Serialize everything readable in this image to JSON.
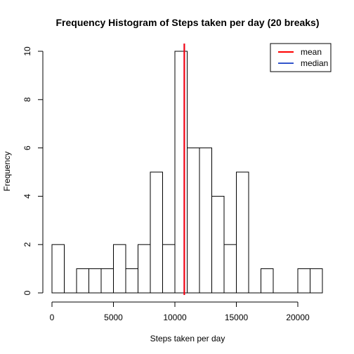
{
  "chart_data": {
    "type": "bar",
    "title": "Frequency Histogram of Steps taken per day (20 breaks)",
    "xlabel": "Steps taken per day",
    "ylabel": "Frequency",
    "xlim": [
      0,
      22000
    ],
    "ylim": [
      0,
      10
    ],
    "x_ticks": [
      0,
      5000,
      10000,
      15000,
      20000
    ],
    "y_ticks": [
      0,
      2,
      4,
      6,
      8,
      10
    ],
    "bin_width": 1000,
    "bins": [
      {
        "start": 0,
        "count": 2
      },
      {
        "start": 1000,
        "count": 0
      },
      {
        "start": 2000,
        "count": 1
      },
      {
        "start": 3000,
        "count": 1
      },
      {
        "start": 4000,
        "count": 1
      },
      {
        "start": 5000,
        "count": 2
      },
      {
        "start": 6000,
        "count": 1
      },
      {
        "start": 7000,
        "count": 2
      },
      {
        "start": 8000,
        "count": 5
      },
      {
        "start": 9000,
        "count": 2
      },
      {
        "start": 10000,
        "count": 10
      },
      {
        "start": 11000,
        "count": 6
      },
      {
        "start": 12000,
        "count": 6
      },
      {
        "start": 13000,
        "count": 4
      },
      {
        "start": 14000,
        "count": 2
      },
      {
        "start": 15000,
        "count": 5
      },
      {
        "start": 16000,
        "count": 0
      },
      {
        "start": 17000,
        "count": 1
      },
      {
        "start": 18000,
        "count": 0
      },
      {
        "start": 19000,
        "count": 0
      },
      {
        "start": 20000,
        "count": 1
      },
      {
        "start": 21000,
        "count": 1
      }
    ],
    "lines": [
      {
        "name": "mean",
        "value": 10766,
        "color": "#ff0000"
      },
      {
        "name": "median",
        "value": 10765,
        "color": "#0000ff"
      }
    ],
    "legend": {
      "position": "top-right",
      "entries": [
        {
          "label": "mean",
          "color": "#ff0000"
        },
        {
          "label": "median",
          "color": "#3355cc"
        }
      ]
    },
    "grid": false
  }
}
